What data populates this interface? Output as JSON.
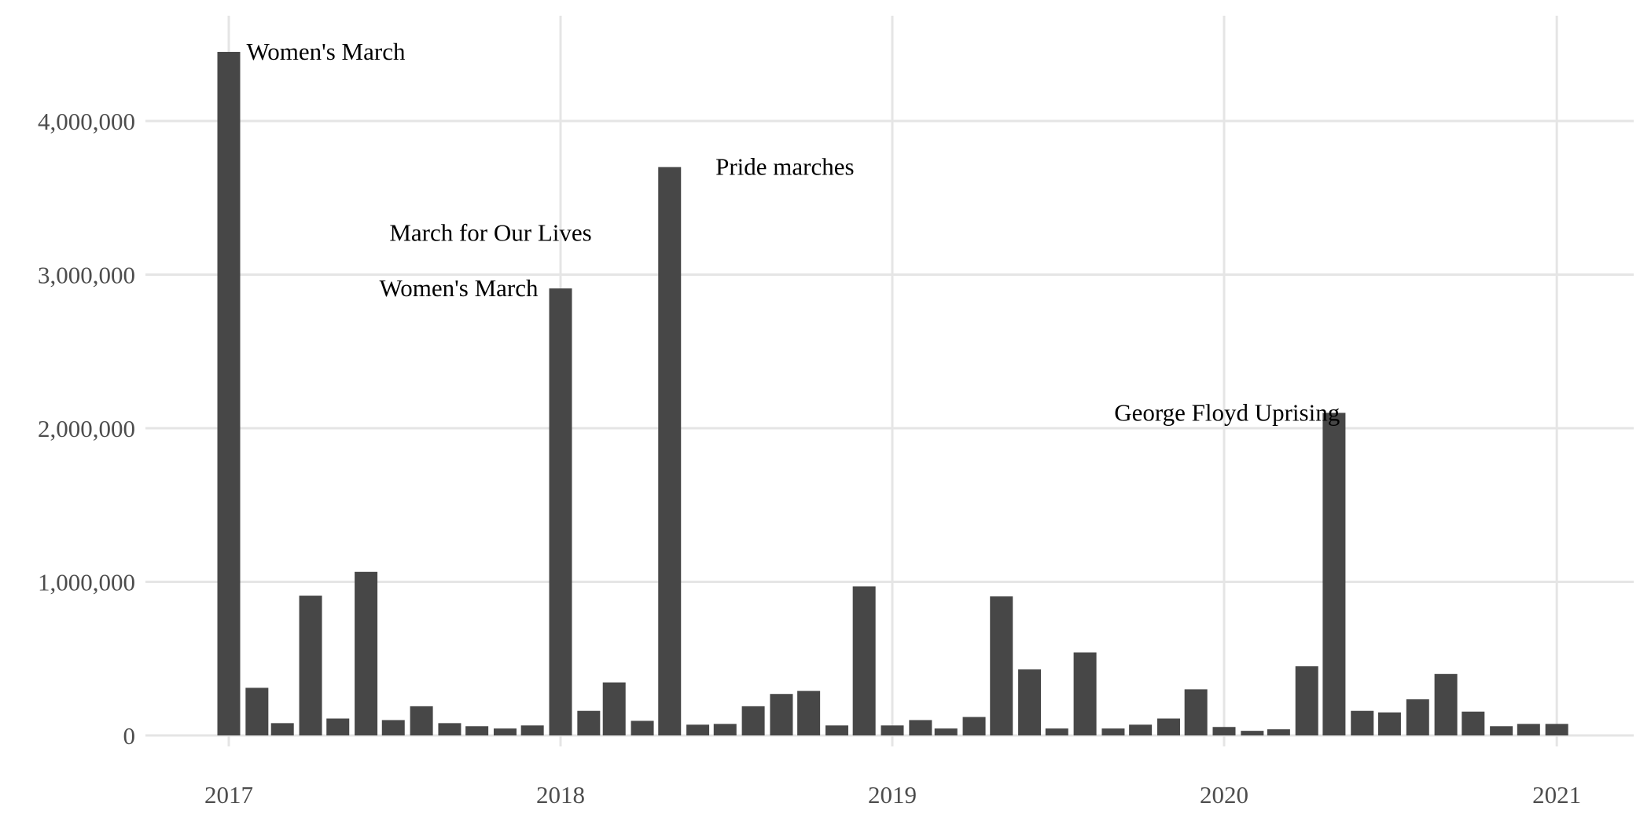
{
  "chart_data": {
    "type": "bar",
    "title": "",
    "xlabel": "",
    "ylabel": "",
    "x_ticks": [
      "2017",
      "2018",
      "2019",
      "2020",
      "2021"
    ],
    "y_ticks": [
      "0",
      "1,000,000",
      "2,000,000",
      "3,000,000",
      "4,000,000"
    ],
    "ylim": [
      0,
      4600000
    ],
    "xlim": [
      "2016-10-27",
      "2021-03-28"
    ],
    "grid": true,
    "bar_color": "#474747",
    "gridline_color": "#e5e5e5",
    "x": [
      "2017-01",
      "2017-02",
      "2017-03",
      "2017-04",
      "2017-05",
      "2017-06",
      "2017-07",
      "2017-08",
      "2017-09",
      "2017-10",
      "2017-11",
      "2017-12",
      "2018-01",
      "2018-02",
      "2018-03",
      "2018-04",
      "2018-05",
      "2018-06",
      "2018-07",
      "2018-08",
      "2018-09",
      "2018-10",
      "2018-11",
      "2018-12",
      "2019-01",
      "2019-02",
      "2019-03",
      "2019-04",
      "2019-05",
      "2019-06",
      "2019-07",
      "2019-08",
      "2019-09",
      "2019-10",
      "2019-11",
      "2019-12",
      "2020-01",
      "2020-02",
      "2020-03",
      "2020-04",
      "2020-05",
      "2020-06",
      "2020-07",
      "2020-08",
      "2020-09",
      "2020-10",
      "2020-11",
      "2020-12",
      "2021-01"
    ],
    "values": [
      4450000,
      310000,
      80000,
      910000,
      110000,
      1065000,
      100000,
      190000,
      80000,
      60000,
      45000,
      65000,
      2910000,
      160000,
      345000,
      95000,
      3700000,
      70000,
      75000,
      190000,
      270000,
      290000,
      65000,
      970000,
      65000,
      100000,
      45000,
      120000,
      905000,
      430000,
      45000,
      540000,
      45000,
      70000,
      110000,
      300000,
      55000,
      30000,
      40000,
      450000,
      2100000,
      160000,
      150000,
      235000,
      400000,
      155000,
      60000,
      75000,
      75000
    ],
    "annotations": [
      {
        "text": "Women's March",
        "x": "2017-01",
        "y": 4450000,
        "side": "right"
      },
      {
        "text": "Women's March",
        "x": "2018-01",
        "y": 2910000,
        "side": "left"
      },
      {
        "text": "March for Our Lives",
        "x": "2018-03",
        "y": 3270000,
        "side": "left"
      },
      {
        "text": "Pride marches",
        "x": "2018-06",
        "y": 3700000,
        "side": "right"
      },
      {
        "text": "George Floyd Uprising",
        "x": "2020-06",
        "y": 2100000,
        "side": "left"
      }
    ]
  }
}
